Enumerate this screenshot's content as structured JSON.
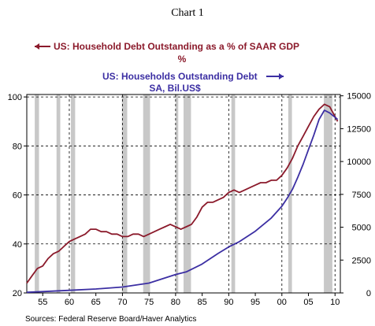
{
  "chart_data": {
    "type": "line",
    "title": "Chart 1",
    "source": "Sources:  Federal Reserve Board/Haver Analytics",
    "x_ticks": [
      "55",
      "60",
      "65",
      "70",
      "75",
      "80",
      "85",
      "90",
      "95",
      "00",
      "05",
      "10"
    ],
    "x_range": [
      1952,
      2011
    ],
    "left_axis": {
      "ticks": [
        "20",
        "40",
        "60",
        "80",
        "100"
      ],
      "range": [
        20,
        101
      ]
    },
    "right_axis": {
      "ticks": [
        "0",
        "2500",
        "5000",
        "7500",
        "10000",
        "12500",
        "15000"
      ],
      "range": [
        0,
        15100
      ]
    },
    "gridlines": "dashed horizontal at left-axis ticks",
    "recession_shading": [
      [
        1953.5,
        1954.3
      ],
      [
        1957.6,
        1958.3
      ],
      [
        1960.3,
        1961.1
      ],
      [
        1969.9,
        1970.9
      ],
      [
        1973.9,
        1975.2
      ],
      [
        1980.0,
        1980.5
      ],
      [
        1981.5,
        1982.9
      ],
      [
        1990.5,
        1991.2
      ],
      [
        2001.2,
        2001.9
      ],
      [
        2007.9,
        2009.5
      ]
    ],
    "annual_vertical_lines": [
      1960,
      1970,
      1980,
      1990,
      2000,
      2010
    ],
    "series": [
      {
        "name": "US: Household Debt Outstanding as a % of SAAR GDP",
        "name_line2": "%",
        "axis": "left",
        "color": "#8b1a2b",
        "x": [
          1952,
          1953,
          1954,
          1955,
          1956,
          1957,
          1958,
          1959,
          1960,
          1961,
          1962,
          1963,
          1964,
          1965,
          1966,
          1967,
          1968,
          1969,
          1970,
          1971,
          1972,
          1973,
          1974,
          1975,
          1976,
          1977,
          1978,
          1979,
          1980,
          1981,
          1982,
          1983,
          1984,
          1985,
          1986,
          1987,
          1988,
          1989,
          1990,
          1991,
          1992,
          1993,
          1994,
          1995,
          1996,
          1997,
          1998,
          1999,
          2000,
          2001,
          2002,
          2003,
          2004,
          2005,
          2006,
          2007,
          2008,
          2009,
          2010.5
        ],
        "y": [
          24,
          27,
          30,
          31,
          34,
          36,
          37,
          39,
          41,
          42,
          43,
          44,
          46,
          46,
          45,
          45,
          44,
          44,
          43,
          43,
          44,
          44,
          43,
          44,
          45,
          46,
          47,
          48,
          47,
          46,
          47,
          48,
          51,
          55,
          57,
          57,
          58,
          59,
          61,
          62,
          61,
          62,
          63,
          64,
          65,
          65,
          66,
          66,
          68,
          71,
          75,
          80,
          84,
          88,
          92,
          95,
          97,
          96,
          90
        ]
      },
      {
        "name": "US: Households Outstanding Debt",
        "name_line2": "SA, Bil.US$",
        "axis": "right",
        "color": "#3c2fa3",
        "x": [
          1952,
          1955,
          1960,
          1965,
          1970,
          1975,
          1980,
          1982,
          1985,
          1988,
          1990,
          1992,
          1995,
          1998,
          2000,
          2001,
          2002,
          2003,
          2004,
          2005,
          2006,
          2007,
          2008,
          2009,
          2010.5
        ],
        "y": [
          50,
          100,
          200,
          300,
          450,
          750,
          1400,
          1600,
          2200,
          3000,
          3500,
          3900,
          4700,
          5700,
          6600,
          7200,
          7900,
          8800,
          9800,
          10900,
          12000,
          13200,
          13900,
          13700,
          13200
        ]
      }
    ]
  }
}
